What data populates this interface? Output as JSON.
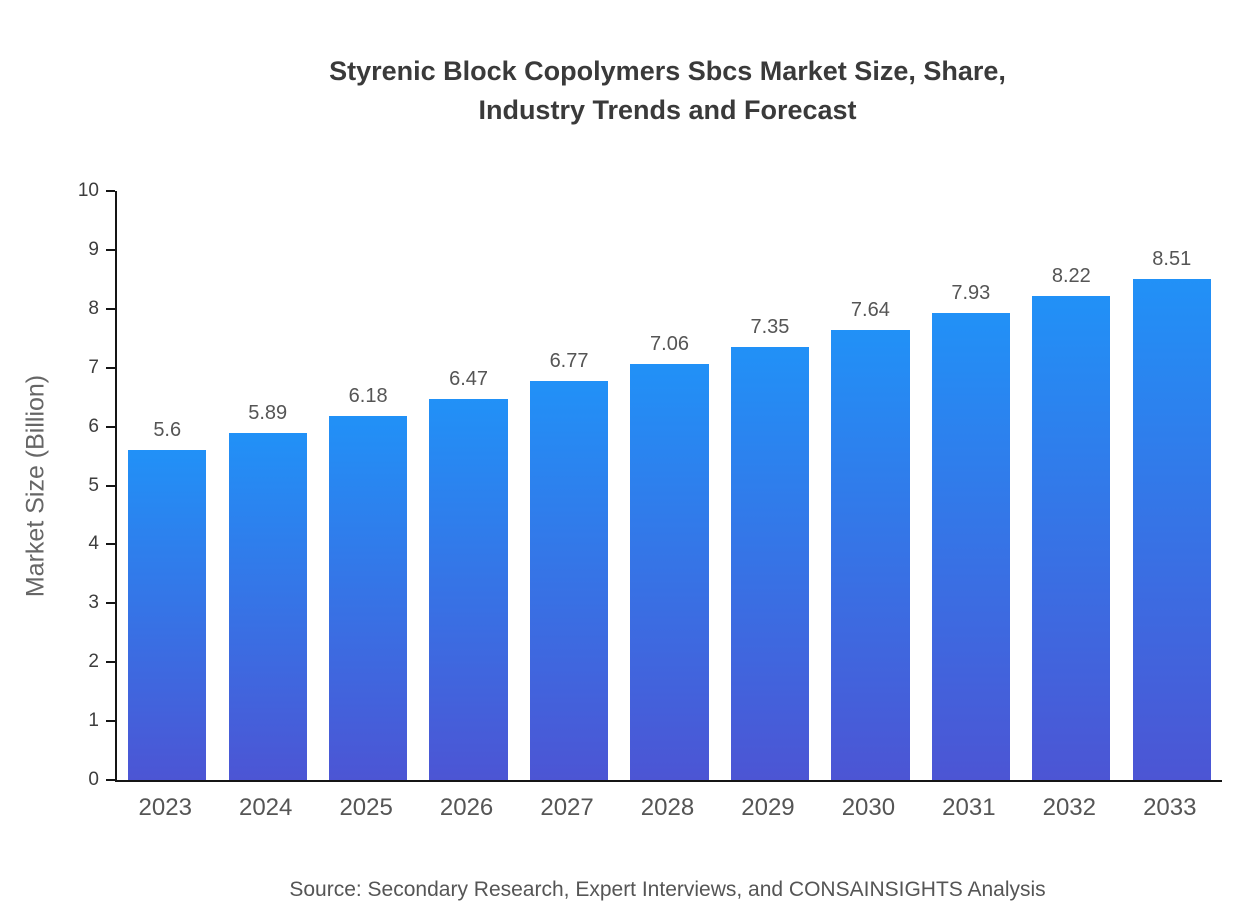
{
  "chart_data": {
    "type": "bar",
    "title": "Styrenic Block Copolymers Sbcs Market Size, Share, Industry Trends and Forecast",
    "title_lines": [
      "Styrenic Block Copolymers Sbcs Market Size, Share,",
      "Industry Trends and Forecast"
    ],
    "categories": [
      "2023",
      "2024",
      "2025",
      "2026",
      "2027",
      "2028",
      "2029",
      "2030",
      "2031",
      "2032",
      "2033"
    ],
    "values": [
      5.6,
      5.89,
      6.18,
      6.47,
      6.77,
      7.06,
      7.35,
      7.64,
      7.93,
      8.22,
      8.51
    ],
    "xlabel": "",
    "ylabel": "Market Size (Billion)",
    "ylim": [
      0,
      10
    ],
    "yticks": [
      0,
      1,
      2,
      3,
      4,
      5,
      6,
      7,
      8,
      9,
      10
    ],
    "grid": false,
    "legend": "none",
    "bar_color_top": "#2191f7",
    "bar_color_bottom": "#4c55d4",
    "axis_color": "#151515",
    "source": "Source: Secondary Research, Expert Interviews, and CONSAINSIGHTS Analysis"
  }
}
